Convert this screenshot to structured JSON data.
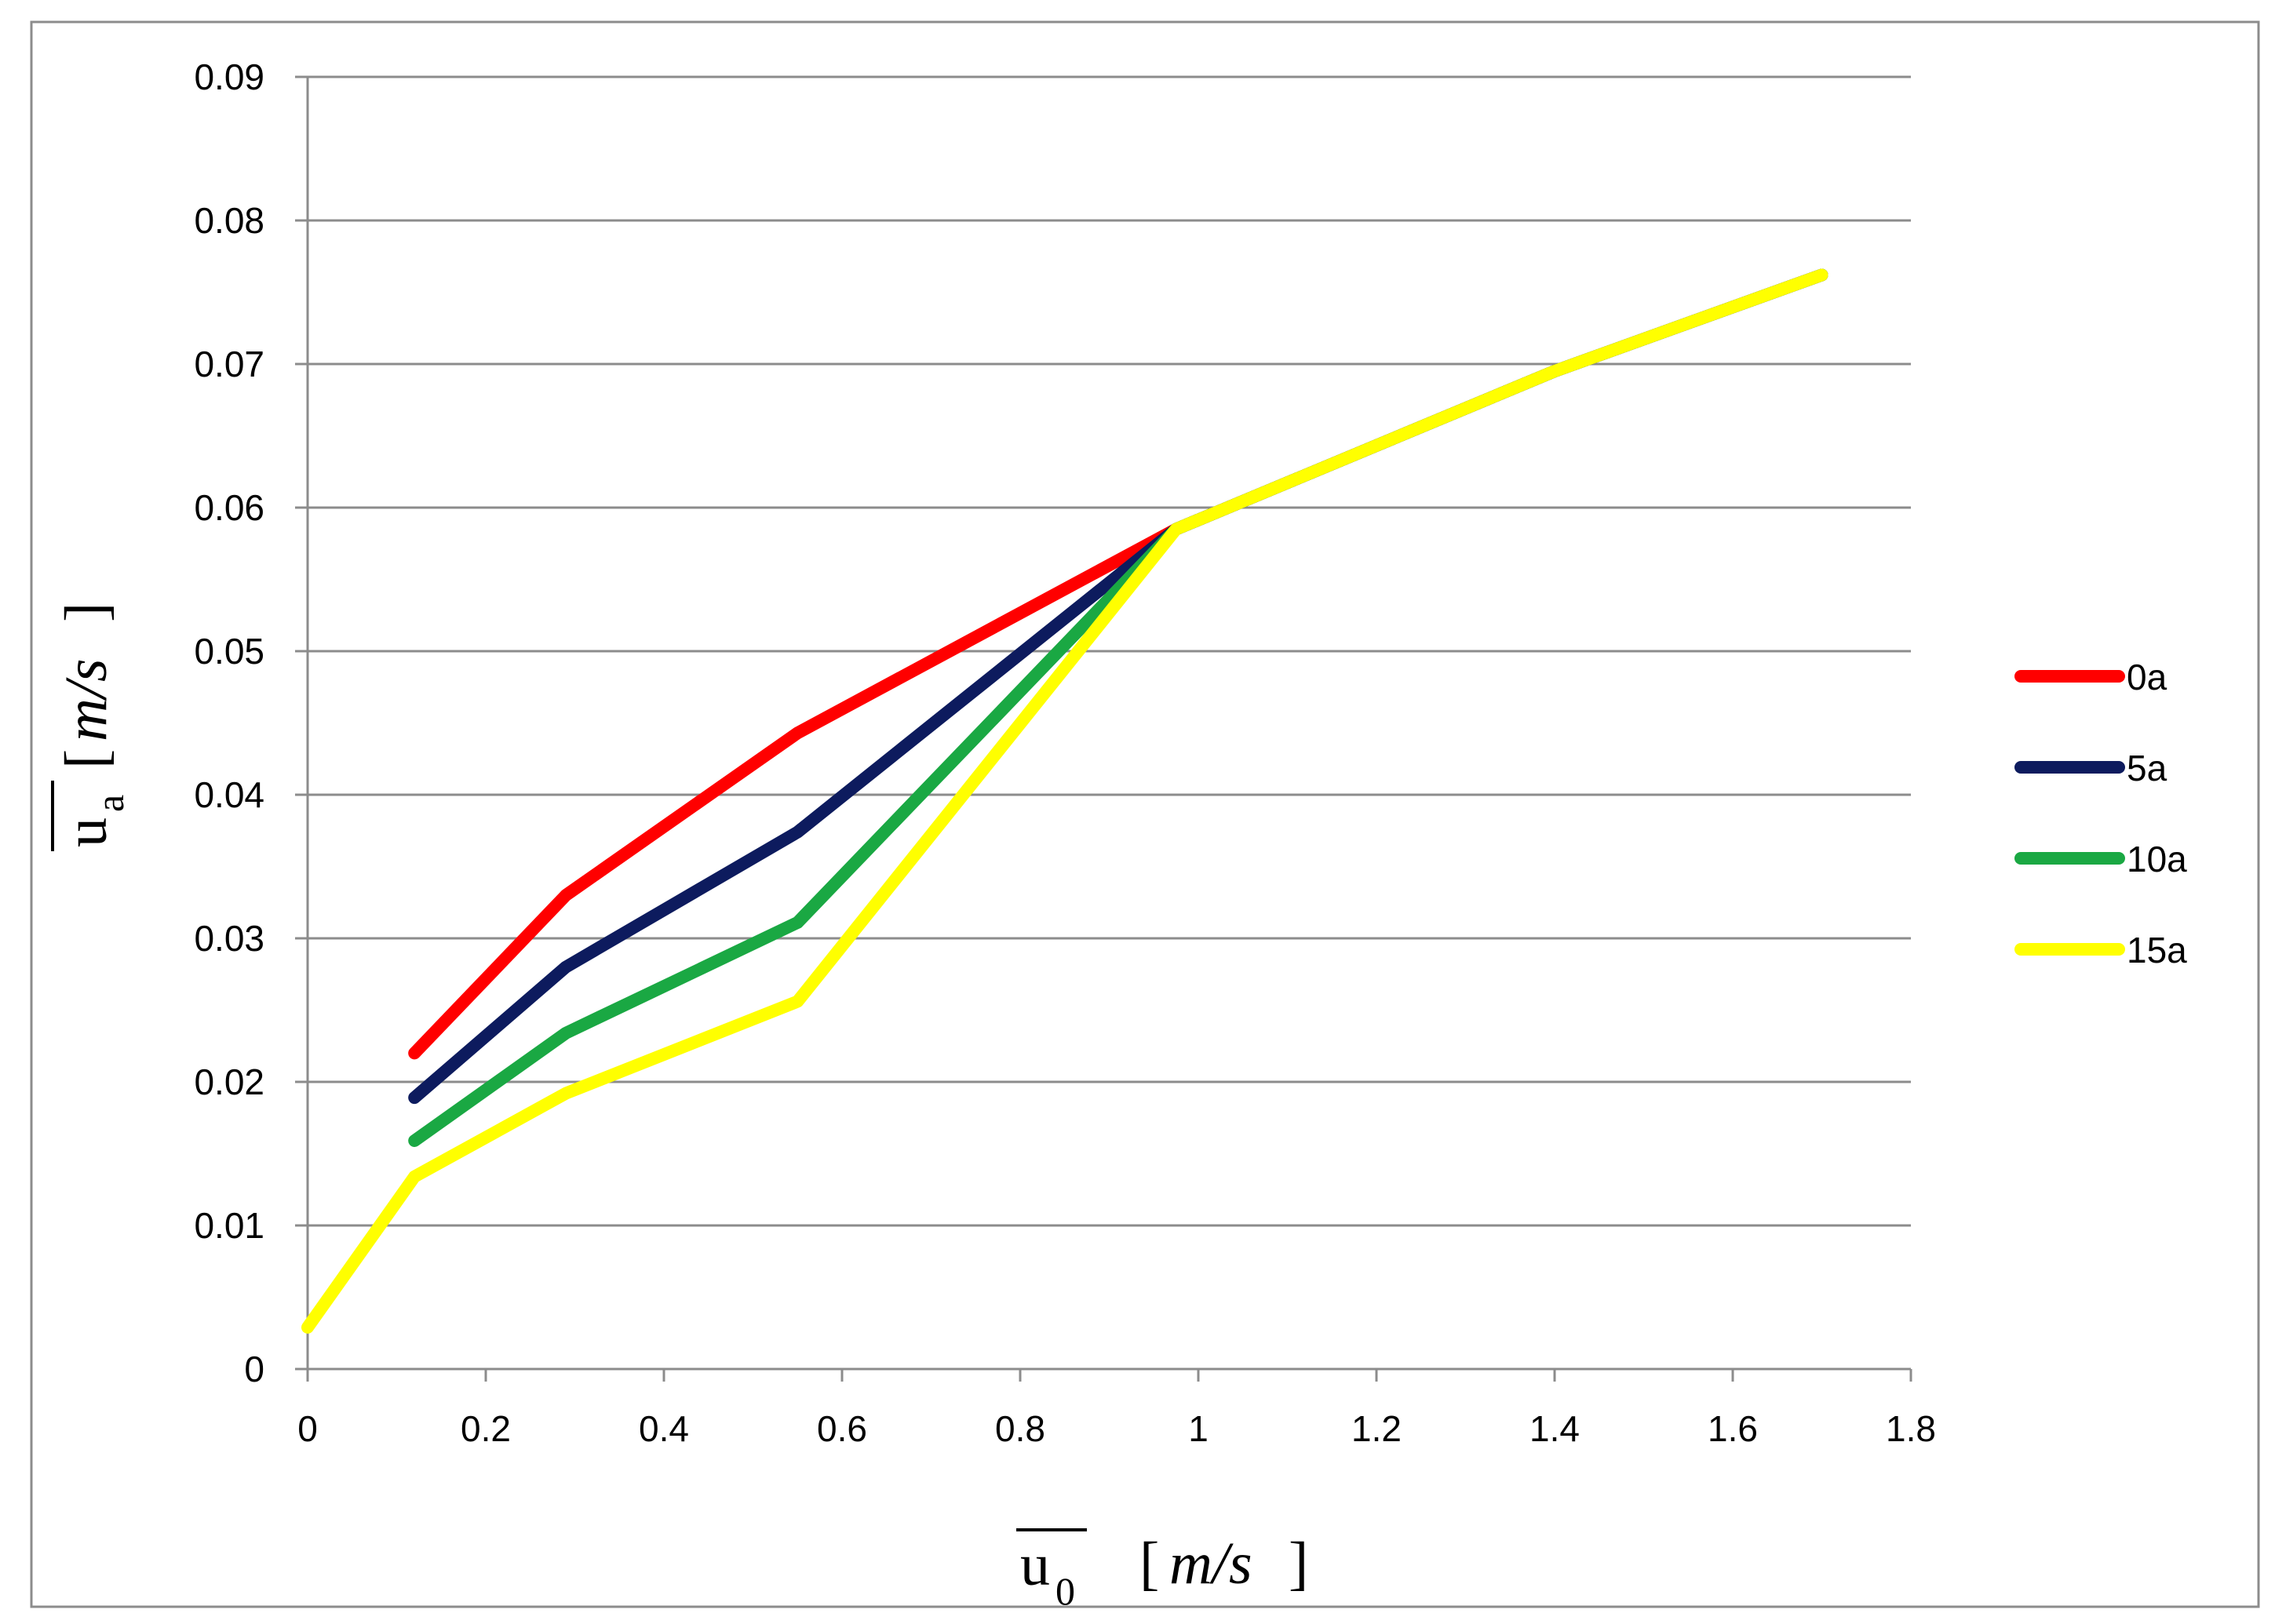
{
  "chart_data": {
    "type": "line",
    "title": "",
    "xlabel": {
      "symbol": "u",
      "subscript": "0",
      "unit_open": "[",
      "unit": "m/s",
      "unit_close": "]"
    },
    "ylabel": {
      "symbol": "u",
      "subscript": "a",
      "unit_open": "[",
      "unit": "m/s",
      "unit_close": "]"
    },
    "xlim": [
      0,
      1.8
    ],
    "ylim": [
      0,
      0.09
    ],
    "x_ticks": [
      "0",
      "0.2",
      "0.4",
      "0.6",
      "0.8",
      "1",
      "1.2",
      "1.4",
      "1.6",
      "1.8"
    ],
    "y_ticks": [
      "0",
      "0.01",
      "0.02",
      "0.03",
      "0.04",
      "0.05",
      "0.06",
      "0.07",
      "0.08",
      "0.09"
    ],
    "grid": "horizontal",
    "legend_position": "right",
    "series": [
      {
        "name": "0a",
        "color": "#ff0000",
        "x": [
          0.12,
          0.29,
          0.55,
          0.975,
          1.4,
          1.7
        ],
        "y": [
          0.022,
          0.033,
          0.0443,
          0.0585,
          0.0695,
          0.0762
        ]
      },
      {
        "name": "5a",
        "color": "#0d1b5e",
        "x": [
          0.12,
          0.29,
          0.55,
          0.975,
          1.4,
          1.7
        ],
        "y": [
          0.0189,
          0.028,
          0.0374,
          0.0585,
          0.0695,
          0.0762
        ]
      },
      {
        "name": "10a",
        "color": "#1aa843",
        "x": [
          0.12,
          0.29,
          0.55,
          0.975,
          1.4,
          1.7
        ],
        "y": [
          0.0159,
          0.0234,
          0.0311,
          0.0585,
          0.0695,
          0.0762
        ]
      },
      {
        "name": "15a",
        "color": "#ffff00",
        "x": [
          0.0,
          0.12,
          0.29,
          0.55,
          0.975,
          1.4,
          1.7
        ],
        "y": [
          0.0029,
          0.0134,
          0.0192,
          0.0256,
          0.0585,
          0.0695,
          0.0762
        ]
      }
    ]
  }
}
